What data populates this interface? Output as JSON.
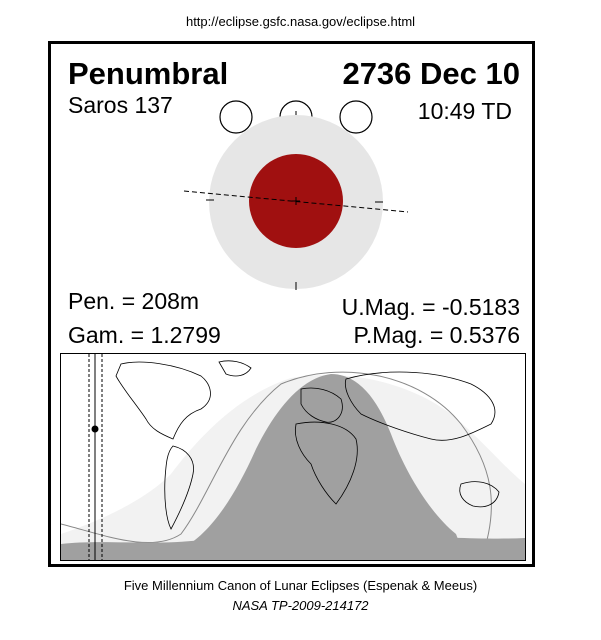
{
  "url": "http://eclipse.gsfc.nasa.gov/eclipse.html",
  "header": {
    "type": "Penumbral",
    "date": "2736 Dec 10",
    "saros": "Saros 137",
    "time": "10:49 TD"
  },
  "parameters": {
    "pen": "Pen. = 208m",
    "gam": "Gam. = 1.2799",
    "umag": "U.Mag. = -0.5183",
    "pmag": "P.Mag. = 0.5376"
  },
  "colors": {
    "moon_red": "#a01010",
    "penumbra_gray": "#e6e6e6",
    "visibility_gray": "#a0a0a0",
    "partial_visibility": "#f2f2f2"
  },
  "footer": {
    "line1": "Five Millennium Canon of Lunar Eclipses (Espenak & Meeus)",
    "line2": "NASA TP-2009-214172"
  }
}
